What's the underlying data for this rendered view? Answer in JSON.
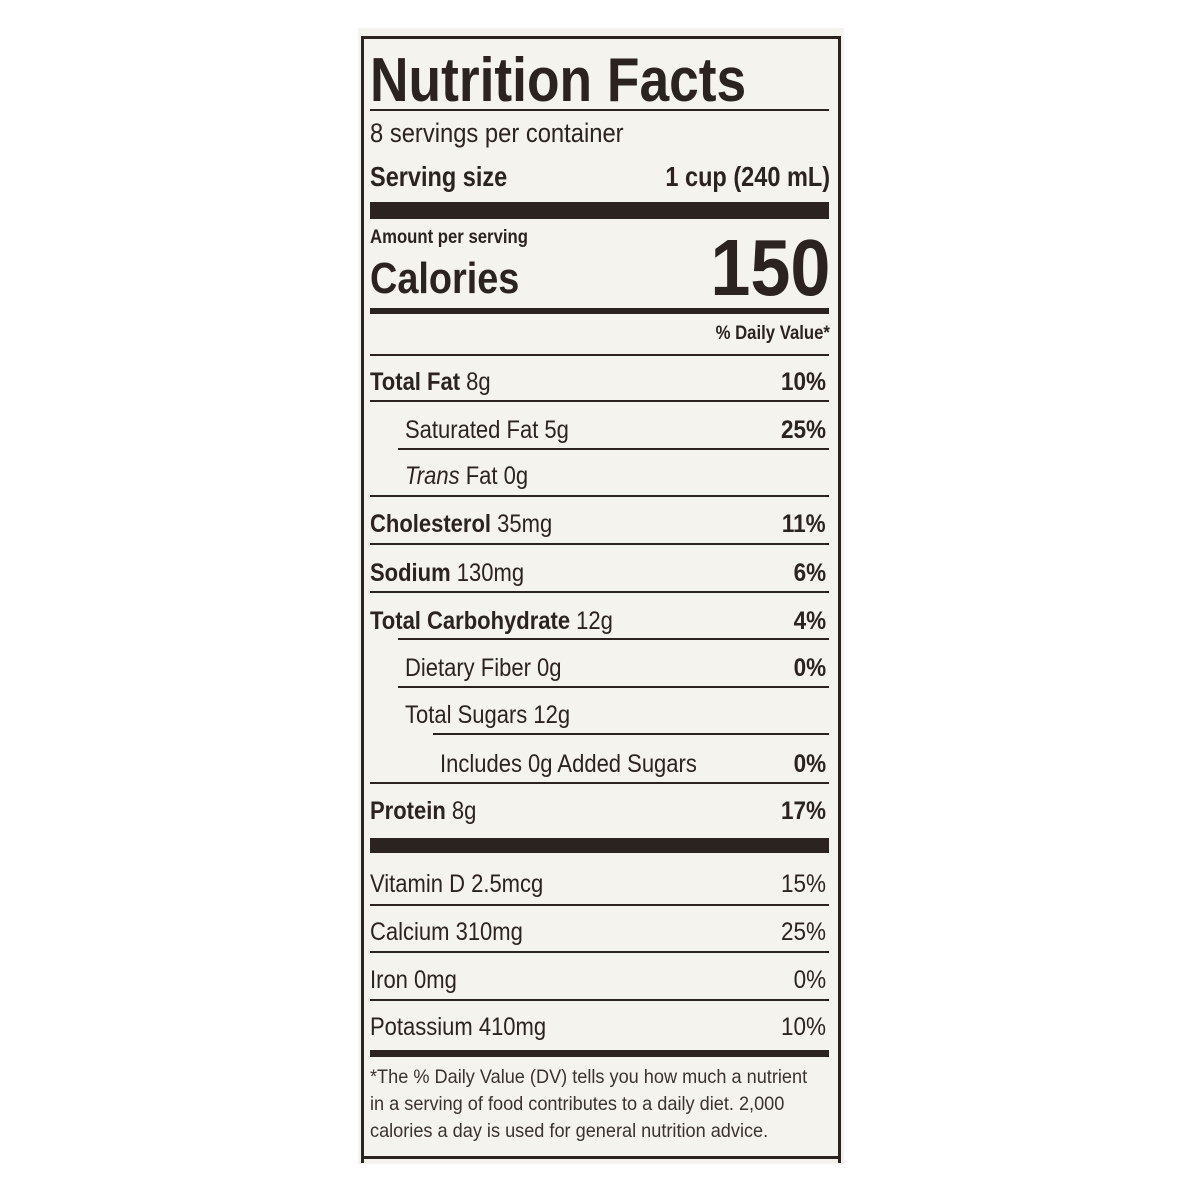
{
  "title": "Nutrition Facts",
  "servings_per_container": "8 servings per container",
  "serving_size": {
    "label": "Serving size",
    "value": "1 cup (240 mL)"
  },
  "amount_per_serving": "Amount per serving",
  "calories": {
    "label": "Calories",
    "value": "150"
  },
  "daily_value_header": "% Daily Value*",
  "nutrients": [
    {
      "name": "Total Fat",
      "amount": "8g",
      "dv": "10%",
      "bold": true,
      "indent": 0
    },
    {
      "name": "Saturated Fat",
      "amount": "5g",
      "dv": "25%",
      "bold": false,
      "indent": 1
    },
    {
      "name": "Trans",
      "name_suffix": "Fat",
      "amount": "0g",
      "dv": "",
      "bold": false,
      "indent": 1
    },
    {
      "name": "Cholesterol",
      "amount": "35mg",
      "dv": "11%",
      "bold": true,
      "indent": 0
    },
    {
      "name": "Sodium",
      "amount": "130mg",
      "dv": "6%",
      "bold": true,
      "indent": 0
    },
    {
      "name": "Total Carbohydrate",
      "amount": "12g",
      "dv": "4%",
      "bold": true,
      "indent": 0
    },
    {
      "name": "Dietary Fiber",
      "amount": "0g",
      "dv": "0%",
      "bold": false,
      "indent": 1
    },
    {
      "name": "Total Sugars",
      "amount": "12g",
      "dv": "",
      "bold": false,
      "indent": 1
    },
    {
      "name": "Includes 0g Added Sugars",
      "amount": "",
      "dv": "0%",
      "bold": false,
      "indent": 2
    },
    {
      "name": "Protein",
      "amount": "8g",
      "dv": "17%",
      "bold": true,
      "indent": 0
    }
  ],
  "vitamins": [
    {
      "name": "Vitamin D",
      "amount": "2.5mcg",
      "dv": "15%"
    },
    {
      "name": "Calcium",
      "amount": "310mg",
      "dv": "25%"
    },
    {
      "name": "Iron",
      "amount": "0mg",
      "dv": "0%"
    },
    {
      "name": "Potassium",
      "amount": "410mg",
      "dv": "10%"
    }
  ],
  "footnote": "*The % Daily Value (DV) tells you how much a nutrient in a serving of food contributes to a daily diet. 2,000 calories a day is used for general nutrition advice.",
  "colors": {
    "ink": "#2b2320",
    "paper": "#f5f3ee",
    "background": "#ffffff"
  }
}
